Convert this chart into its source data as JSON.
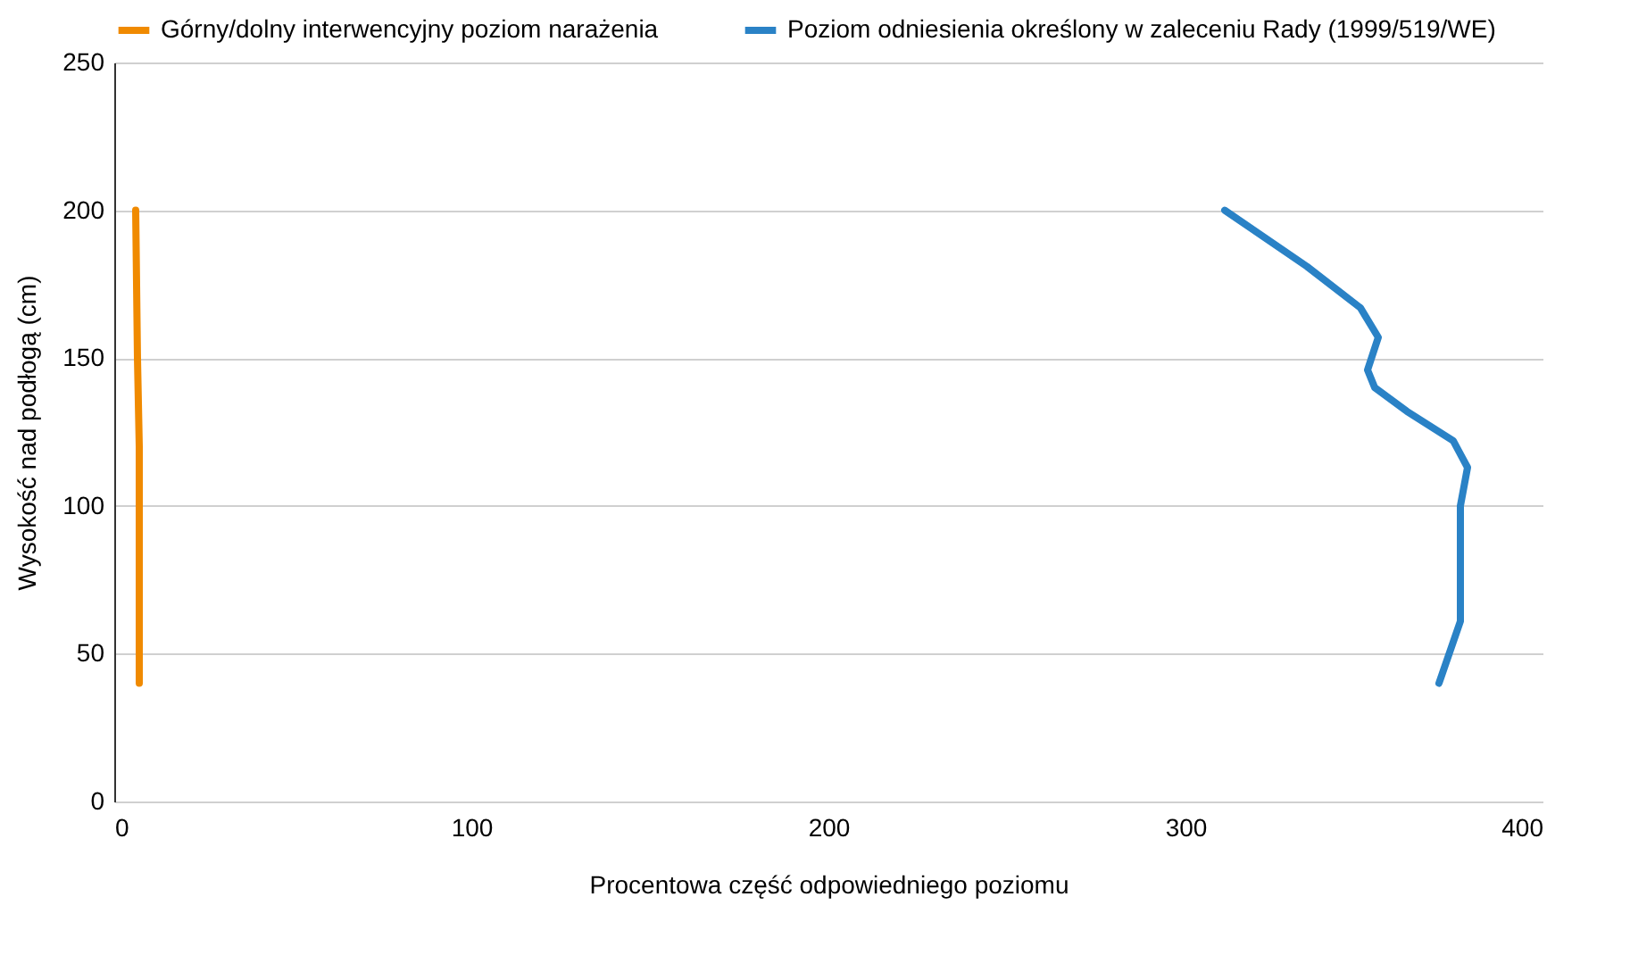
{
  "chart_data": {
    "type": "line",
    "xlabel": "Procentowa część odpowiedniego poziomu",
    "ylabel": "Wysokość nad podłogą (cm)",
    "xlim": [
      0,
      400
    ],
    "xticks": [
      0,
      100,
      200,
      300,
      400
    ],
    "ylim": [
      0,
      250
    ],
    "yticks": [
      0,
      50,
      100,
      150,
      200,
      250
    ],
    "grid": "y",
    "legend": "top",
    "line_style": "solid",
    "marker": "none",
    "series": [
      {
        "name": "Górny/dolny interwencyjny poziom narażenia",
        "color": "#f08a00",
        "x": [
          6,
          6.5,
          7,
          7,
          7
        ],
        "values": [
          200,
          150,
          120,
          80,
          40
        ]
      },
      {
        "name": "Poziom odniesienia określony w zaleceniu Rady (1999/519/WE)",
        "color": "#2a82c6",
        "x": [
          311,
          334,
          349,
          354,
          351,
          353,
          362,
          375,
          379,
          377,
          377,
          377,
          371
        ],
        "values": [
          200,
          181,
          167,
          157,
          146,
          140,
          132,
          122,
          113,
          100,
          69,
          61,
          40
        ]
      }
    ]
  }
}
